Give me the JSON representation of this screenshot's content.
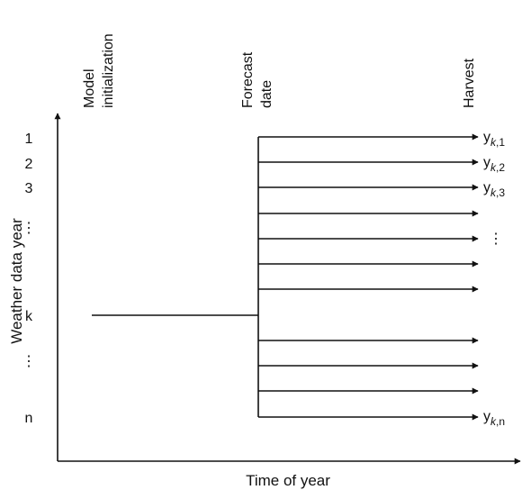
{
  "y_axis_label": "Weather data year",
  "x_axis_label": "Time of year",
  "column_headers": {
    "model_init": [
      "Model",
      "initialization"
    ],
    "forecast": [
      "Forecast",
      "date"
    ],
    "harvest": "Harvest"
  },
  "year_labels": [
    "1",
    "2",
    "3",
    "⋮",
    "k",
    "⋮",
    "n"
  ],
  "outputs": [
    {
      "base": "y",
      "sub_italic": "k",
      "sub_rest": ",1"
    },
    {
      "base": "y",
      "sub_italic": "k",
      "sub_rest": ",2"
    },
    {
      "base": "y",
      "sub_italic": "k",
      "sub_rest": ",3"
    },
    {
      "base": "y",
      "sub_italic": "k",
      "sub_rest": ",n"
    }
  ],
  "outputs_ellipsis": "⋮",
  "arrow_rows_count": 12
}
